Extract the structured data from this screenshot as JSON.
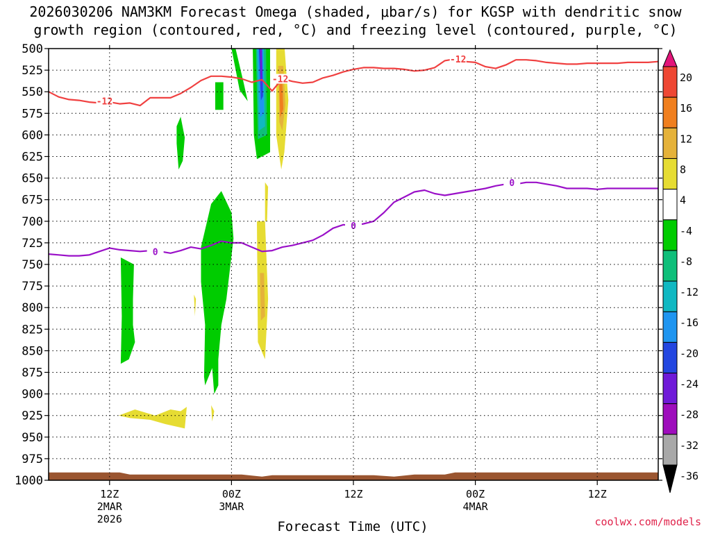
{
  "title": {
    "line1": "2026030206 NAM3KM Forecast Omega (shaded, μbar/s) for KGSP with dendritic snow",
    "line2": "growth region (contoured, red, °C) and freezing level (contoured, purple, °C)"
  },
  "credit": "coolwx.com/models",
  "chart_data": {
    "type": "time-height",
    "xlabel": "Forecast Time (UTC)",
    "ylabel": "",
    "y_axis": {
      "unit": "hPa",
      "range": [
        1000,
        500
      ],
      "ticks": [
        "500",
        "525",
        "550",
        "575",
        "600",
        "625",
        "650",
        "675",
        "700",
        "725",
        "750",
        "775",
        "800",
        "825",
        "850",
        "875",
        "900",
        "925",
        "950",
        "975",
        "1000"
      ]
    },
    "x_axis": {
      "range_hours": [
        6,
        66
      ],
      "ticks": [
        {
          "hour": 12,
          "lines": [
            "12Z",
            "2MAR",
            "2026"
          ]
        },
        {
          "hour": 24,
          "lines": [
            "00Z",
            "3MAR"
          ]
        },
        {
          "hour": 36,
          "lines": [
            "12Z"
          ]
        },
        {
          "hour": 48,
          "lines": [
            "00Z",
            "4MAR"
          ]
        },
        {
          "hour": 60,
          "lines": [
            "12Z"
          ]
        }
      ]
    },
    "grid": true,
    "colorbar": {
      "levels": [
        "20",
        "16",
        "12",
        "8",
        "4",
        "-4",
        "-8",
        "-12",
        "-16",
        "-20",
        "-24",
        "-28",
        "-32",
        "-36"
      ],
      "colors": [
        "#e3157a",
        "#ee4733",
        "#f07f1e",
        "#e5b23a",
        "#e6dc33",
        "#ffffff",
        "#00cc00",
        "#0fbf7a",
        "#10b8c2",
        "#1f95f0",
        "#2346e0",
        "#6f1ad8",
        "#9e0dbc",
        "#a8a8a8",
        "#000000"
      ]
    },
    "series": [
      {
        "name": "-12",
        "color": "#f04040",
        "hours": [
          6,
          7,
          8,
          9,
          10,
          11,
          12,
          13,
          14,
          15,
          16,
          17,
          18,
          19,
          20,
          21,
          22,
          23,
          24,
          25,
          26,
          27,
          28,
          29,
          30,
          31,
          32,
          33,
          34,
          35,
          36,
          37,
          38,
          39,
          40,
          41,
          42,
          43,
          44,
          45,
          46,
          47,
          48,
          49,
          50,
          51,
          52,
          53,
          54,
          55,
          56,
          57,
          58,
          59,
          60,
          61,
          62,
          63,
          64,
          65,
          66
        ],
        "pressure_hPa": [
          550,
          556,
          559,
          560,
          562,
          563,
          562,
          564,
          563,
          566,
          557,
          557,
          557,
          552,
          545,
          537,
          532,
          532,
          533,
          535,
          539,
          536,
          549,
          535,
          538,
          540,
          539,
          534,
          531,
          527,
          524,
          522,
          522,
          523,
          523,
          524,
          526,
          525,
          522,
          514,
          512,
          515,
          516,
          521,
          523,
          519,
          513,
          513,
          514,
          516,
          517,
          518,
          518,
          517,
          517,
          517,
          517,
          516,
          516,
          516,
          515
        ],
        "labels": [
          {
            "hour": 11.5,
            "pressure": 560.5
          },
          {
            "hour": 28.8,
            "pressure": 535
          },
          {
            "hour": 46.3,
            "pressure": 512
          }
        ]
      },
      {
        "name": "0",
        "color": "#9a10c8",
        "hours": [
          6,
          7,
          8,
          9,
          10,
          11,
          12,
          13,
          14,
          15,
          16,
          17,
          18,
          19,
          20,
          21,
          22,
          23,
          24,
          25,
          26,
          27,
          28,
          29,
          30,
          31,
          32,
          33,
          34,
          35,
          36,
          37,
          38,
          39,
          40,
          41,
          42,
          43,
          44,
          45,
          46,
          47,
          48,
          49,
          50,
          51,
          52,
          53,
          54,
          55,
          56,
          57,
          58,
          59,
          60,
          61,
          62,
          63,
          64,
          65,
          66
        ],
        "pressure_hPa": [
          738,
          739,
          740,
          740,
          739,
          735,
          731,
          733,
          734,
          735,
          734,
          735,
          737,
          734,
          730,
          732,
          728,
          723,
          725,
          725,
          730,
          735,
          734,
          730,
          728,
          725,
          722,
          716,
          708,
          704,
          705,
          703,
          700,
          690,
          678,
          672,
          666,
          664,
          668,
          670,
          668,
          666,
          664,
          662,
          659,
          657,
          657,
          655,
          655,
          657,
          659,
          662,
          662,
          662,
          663,
          662,
          662,
          662,
          662,
          662,
          662
        ],
        "labels": [
          {
            "hour": 16.5,
            "pressure": 735
          },
          {
            "hour": 36,
            "pressure": 705
          },
          {
            "hour": 51.6,
            "pressure": 655
          }
        ]
      }
    ],
    "omega_regions": [
      {
        "level": "-4",
        "hours": [
          24.0,
          24.4,
          25.2,
          25.6,
          24.8
        ],
        "pressure_hPa": [
          500,
          500,
          540,
          561,
          548
        ]
      },
      {
        "level": "-4",
        "hours": [
          22.4,
          23.2,
          23.2,
          22.4
        ],
        "pressure_hPa": [
          539,
          539,
          571,
          571
        ]
      },
      {
        "level": "-4",
        "hours": [
          18.6,
          19.0,
          19.4,
          19.2,
          18.8,
          18.6
        ],
        "pressure_hPa": [
          590,
          579,
          603,
          630,
          640,
          610
        ]
      },
      {
        "level": "-4",
        "hours": [
          13.1,
          14.4,
          14.3,
          14.3,
          14.5,
          13.9,
          13.1,
          13.2
        ],
        "pressure_hPa": [
          742,
          750,
          790,
          820,
          840,
          860,
          865,
          810
        ]
      },
      {
        "level": "-4",
        "hours": [
          21.0,
          22.0,
          23.0,
          24.0,
          24.2,
          23.5,
          23.0,
          22.7,
          22.7,
          22.3,
          22.1,
          21.4,
          21.3,
          21.4,
          21.0
        ],
        "pressure_hPa": [
          730,
          680,
          665,
          690,
          720,
          790,
          820,
          860,
          890,
          900,
          870,
          890,
          880,
          820,
          770
        ]
      },
      {
        "level": "-4",
        "hours": [
          26.1,
          27.8,
          27.8,
          26.5,
          26.2
        ],
        "pressure_hPa": [
          500,
          500,
          620,
          628,
          600
        ]
      },
      {
        "level": "-8",
        "hours": [
          26.4,
          27.4,
          27.5,
          26.6
        ],
        "pressure_hPa": [
          500,
          500,
          600,
          605
        ]
      },
      {
        "level": "-12",
        "hours": [
          26.5,
          27.2,
          27.3,
          26.7
        ],
        "pressure_hPa": [
          500,
          500,
          590,
          595
        ]
      },
      {
        "level": "-16",
        "hours": [
          26.6,
          27.1,
          27.2,
          26.8
        ],
        "pressure_hPa": [
          500,
          500,
          575,
          580
        ]
      },
      {
        "level": "-20",
        "hours": [
          26.7,
          27.0,
          27.1,
          26.9
        ],
        "pressure_hPa": [
          500,
          500,
          555,
          560
        ]
      },
      {
        "level": "-24",
        "hours": [
          26.8,
          27.0,
          27.0,
          26.9
        ],
        "pressure_hPa": [
          500,
          500,
          540,
          545
        ]
      },
      {
        "level": "4",
        "hours": [
          28.4,
          29.2,
          29.6,
          29.2,
          28.9,
          28.4
        ],
        "pressure_hPa": [
          500,
          495,
          560,
          620,
          640,
          600
        ]
      },
      {
        "level": "8",
        "hours": [
          28.6,
          29.1,
          29.3,
          29.0,
          28.7
        ],
        "pressure_hPa": [
          520,
          520,
          565,
          595,
          585
        ]
      },
      {
        "level": "12",
        "hours": [
          28.7,
          29.0,
          29.1,
          28.8
        ],
        "pressure_hPa": [
          540,
          540,
          570,
          580
        ]
      },
      {
        "level": "4",
        "hours": [
          26.5,
          27.3,
          27.6,
          27.3,
          26.6
        ],
        "pressure_hPa": [
          700,
          700,
          790,
          860,
          840
        ]
      },
      {
        "level": "8",
        "hours": [
          26.8,
          27.2,
          27.3,
          26.9
        ],
        "pressure_hPa": [
          760,
          760,
          810,
          815
        ]
      },
      {
        "level": "4",
        "hours": [
          27.3,
          27.6,
          27.5,
          27.3
        ],
        "pressure_hPa": [
          655,
          660,
          700,
          700
        ]
      },
      {
        "level": "4",
        "hours": [
          20.3,
          20.5,
          20.4
        ],
        "pressure_hPa": [
          785,
          790,
          810
        ]
      },
      {
        "level": "4",
        "hours": [
          12.9,
          14.5,
          16.5,
          18.0,
          19.0,
          19.6,
          19.4,
          17.5,
          16.0,
          14.0
        ],
        "pressure_hPa": [
          925,
          918,
          925,
          918,
          920,
          915,
          940,
          935,
          930,
          928
        ]
      },
      {
        "level": "4",
        "hours": [
          22.0,
          22.3,
          22.1
        ],
        "pressure_hPa": [
          913,
          920,
          932
        ]
      }
    ],
    "terrain": {
      "color": "#9a5530",
      "top_hPa": 991
    }
  }
}
